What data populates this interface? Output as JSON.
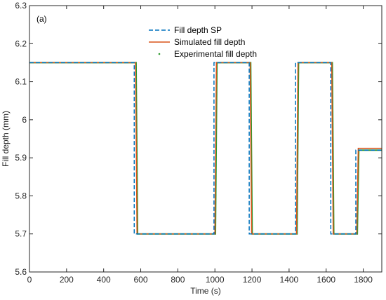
{
  "chart_data": {
    "type": "line",
    "panel_label": "(a)",
    "xlabel": "Time (s)",
    "ylabel": "Fill depth (mm)",
    "xlim": [
      0,
      1900
    ],
    "ylim": [
      5.6,
      6.3
    ],
    "x_ticks": [
      0,
      200,
      400,
      600,
      800,
      1000,
      1200,
      1400,
      1600,
      1800
    ],
    "y_ticks": [
      5.6,
      5.7,
      5.8,
      5.9,
      6.0,
      6.1,
      6.2,
      6.3
    ],
    "x_tick_labels": [
      "0",
      "200",
      "400",
      "600",
      "800",
      "1000",
      "1200",
      "1400",
      "1600",
      "1800"
    ],
    "y_tick_labels": [
      "5.6",
      "5.7",
      "5.8",
      "5.9",
      "6",
      "6.1",
      "6.2",
      "6.3"
    ],
    "legend_position": "top-center",
    "grid": false,
    "series": [
      {
        "name": "Fill depth SP",
        "color": "#0072BD",
        "style": "dashed",
        "x": [
          0,
          565,
          565,
          995,
          995,
          1185,
          1185,
          1435,
          1435,
          1625,
          1625,
          1760,
          1760,
          1900
        ],
        "y": [
          6.15,
          6.15,
          5.7,
          5.7,
          6.15,
          6.15,
          5.7,
          5.7,
          6.15,
          6.15,
          5.7,
          5.7,
          5.92,
          5.92
        ]
      },
      {
        "name": "Simulated fill depth",
        "color": "#D95319",
        "style": "solid",
        "x": [
          0,
          572,
          580,
          1000,
          1008,
          1190,
          1198,
          1440,
          1448,
          1630,
          1638,
          1765,
          1773,
          1900
        ],
        "y": [
          6.15,
          6.15,
          5.7,
          5.7,
          6.15,
          6.15,
          5.7,
          5.7,
          6.15,
          6.15,
          5.7,
          5.7,
          5.925,
          5.925
        ]
      },
      {
        "name": "Experimental fill depth",
        "color": "#2E9A2E",
        "style": "dotted",
        "x": [
          0,
          575,
          583,
          1003,
          1011,
          1193,
          1201,
          1443,
          1451,
          1633,
          1641,
          1768,
          1776,
          1900
        ],
        "y": [
          6.15,
          6.15,
          5.7,
          5.7,
          6.15,
          6.15,
          5.7,
          5.7,
          6.15,
          6.15,
          5.7,
          5.7,
          5.92,
          5.92
        ]
      }
    ]
  }
}
